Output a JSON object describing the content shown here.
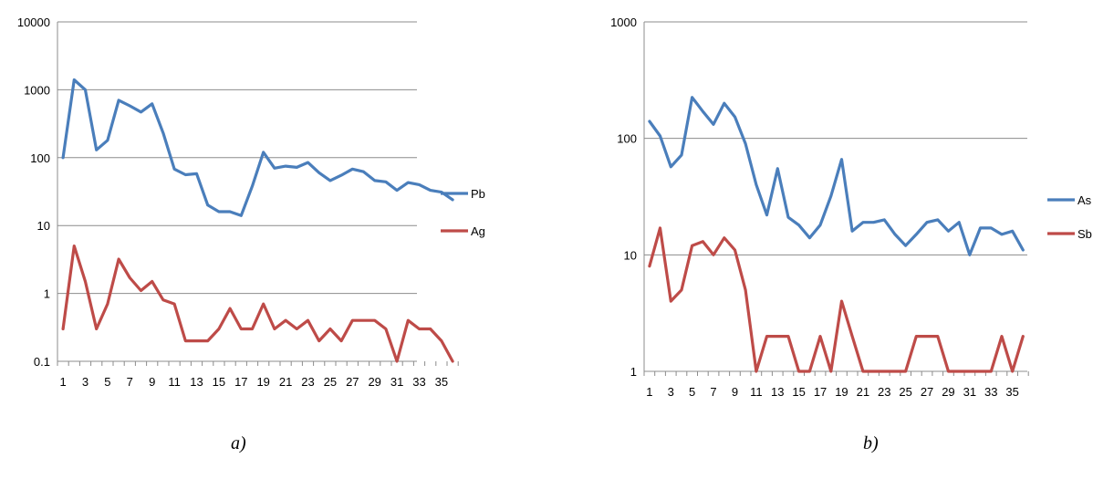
{
  "captions": {
    "a": "a)",
    "b": "b)"
  },
  "chart_data": [
    {
      "type": "line",
      "yscale": "log",
      "ylim": [
        0.1,
        10000
      ],
      "yticks": [
        "0.1",
        "1",
        "10",
        "100",
        "1000",
        "10000"
      ],
      "grid": true,
      "legend_position": "right",
      "x": [
        1,
        2,
        3,
        4,
        5,
        6,
        7,
        8,
        9,
        10,
        11,
        12,
        13,
        14,
        15,
        16,
        17,
        18,
        19,
        20,
        21,
        22,
        23,
        24,
        25,
        26,
        27,
        28,
        29,
        30,
        31,
        32,
        33,
        34,
        35,
        36
      ],
      "xtick_labels": [
        "1",
        "3",
        "5",
        "7",
        "9",
        "11",
        "13",
        "15",
        "17",
        "19",
        "21",
        "23",
        "25",
        "27",
        "29",
        "31",
        "33",
        "35"
      ],
      "series": [
        {
          "name": "Pb",
          "color": "#4a7ebb",
          "values": [
            100,
            1400,
            1000,
            130,
            180,
            700,
            580,
            470,
            620,
            230,
            68,
            56,
            58,
            20,
            16,
            16,
            14,
            38,
            120,
            70,
            75,
            72,
            85,
            60,
            46,
            55,
            68,
            62,
            46,
            44,
            33,
            43,
            40,
            33,
            31,
            24
          ]
        },
        {
          "name": "Ag",
          "color": "#be4b48",
          "values": [
            0.3,
            5,
            1.5,
            0.3,
            0.7,
            3.2,
            1.7,
            1.1,
            1.5,
            0.8,
            0.7,
            0.2,
            0.2,
            0.2,
            0.3,
            0.6,
            0.3,
            0.3,
            0.7,
            0.3,
            0.4,
            0.3,
            0.4,
            0.2,
            0.3,
            0.2,
            0.4,
            0.4,
            0.4,
            0.3,
            0.1,
            0.4,
            0.3,
            0.3,
            0.2,
            0.1
          ]
        }
      ]
    },
    {
      "type": "line",
      "yscale": "log",
      "ylim": [
        1,
        1000
      ],
      "yticks": [
        "1",
        "10",
        "100",
        "1000"
      ],
      "grid": true,
      "legend_position": "right",
      "x": [
        1,
        2,
        3,
        4,
        5,
        6,
        7,
        8,
        9,
        10,
        11,
        12,
        13,
        14,
        15,
        16,
        17,
        18,
        19,
        20,
        21,
        22,
        23,
        24,
        25,
        26,
        27,
        28,
        29,
        30,
        31,
        32,
        33,
        34,
        35,
        36
      ],
      "xtick_labels": [
        "1",
        "3",
        "5",
        "7",
        "9",
        "11",
        "13",
        "15",
        "17",
        "19",
        "21",
        "23",
        "25",
        "27",
        "29",
        "31",
        "33",
        "35"
      ],
      "series": [
        {
          "name": "As",
          "color": "#4a7ebb",
          "values": [
            140,
            105,
            57,
            72,
            225,
            170,
            132,
            200,
            153,
            90,
            40,
            22,
            55,
            21,
            18,
            14,
            18,
            32,
            66,
            16,
            19,
            19,
            20,
            15,
            12,
            15,
            19,
            20,
            16,
            19,
            10,
            17,
            17,
            15,
            16,
            11
          ]
        },
        {
          "name": "Sb",
          "color": "#be4b48",
          "values": [
            8,
            17,
            4,
            5,
            12,
            13,
            10,
            14,
            11,
            5,
            1,
            2,
            2,
            2,
            1,
            1,
            2,
            1,
            4,
            2,
            1,
            1,
            1,
            1,
            1,
            2,
            2,
            2,
            1,
            1,
            1,
            1,
            1,
            2,
            1,
            2
          ]
        }
      ]
    }
  ]
}
